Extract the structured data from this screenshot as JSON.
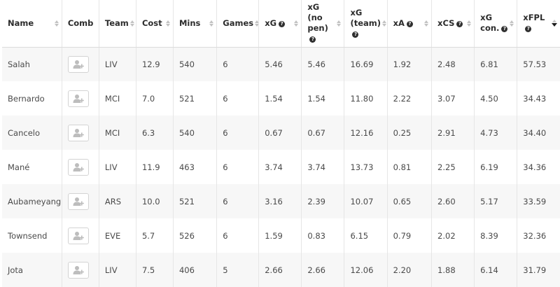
{
  "columns": [
    {
      "label": "Name",
      "help": false,
      "sort": "both"
    },
    {
      "label": "Comb",
      "help": false,
      "sort": "none"
    },
    {
      "label": "Team",
      "help": false,
      "sort": "both"
    },
    {
      "label": "Cost",
      "help": false,
      "sort": "both"
    },
    {
      "label": "Mins",
      "help": false,
      "sort": "both"
    },
    {
      "label": "Games",
      "help": false,
      "sort": "both"
    },
    {
      "label": "xG",
      "help": true,
      "sort": "both"
    },
    {
      "label": "xG (no pen)",
      "help": true,
      "sort": "both"
    },
    {
      "label": "xG (team)",
      "help": true,
      "sort": "both"
    },
    {
      "label": "xA",
      "help": true,
      "sort": "both"
    },
    {
      "label": "xCS",
      "help": true,
      "sort": "both"
    },
    {
      "label": "xG con.",
      "help": true,
      "sort": "both"
    },
    {
      "label": "xFPL",
      "help": true,
      "sort": "desc"
    }
  ],
  "rows": [
    {
      "name": "Salah",
      "team": "LIV",
      "cost": "12.9",
      "mins": "540",
      "games": "6",
      "xg": "5.46",
      "xg_np": "5.46",
      "xg_team": "16.69",
      "xa": "1.92",
      "xcs": "2.48",
      "xg_con": "6.81",
      "xfpl": "57.53"
    },
    {
      "name": "Bernardo",
      "team": "MCI",
      "cost": "7.0",
      "mins": "521",
      "games": "6",
      "xg": "1.54",
      "xg_np": "1.54",
      "xg_team": "11.80",
      "xa": "2.22",
      "xcs": "3.07",
      "xg_con": "4.50",
      "xfpl": "34.43"
    },
    {
      "name": "Cancelo",
      "team": "MCI",
      "cost": "6.3",
      "mins": "540",
      "games": "6",
      "xg": "0.67",
      "xg_np": "0.67",
      "xg_team": "12.16",
      "xa": "0.25",
      "xcs": "2.91",
      "xg_con": "4.73",
      "xfpl": "34.40"
    },
    {
      "name": "Mané",
      "team": "LIV",
      "cost": "11.9",
      "mins": "463",
      "games": "6",
      "xg": "3.74",
      "xg_np": "3.74",
      "xg_team": "13.73",
      "xa": "0.81",
      "xcs": "2.25",
      "xg_con": "6.19",
      "xfpl": "34.36"
    },
    {
      "name": "Aubameyang",
      "team": "ARS",
      "cost": "10.0",
      "mins": "521",
      "games": "6",
      "xg": "3.16",
      "xg_np": "2.39",
      "xg_team": "10.07",
      "xa": "0.65",
      "xcs": "2.60",
      "xg_con": "5.17",
      "xfpl": "33.59"
    },
    {
      "name": "Townsend",
      "team": "EVE",
      "cost": "5.7",
      "mins": "526",
      "games": "6",
      "xg": "1.59",
      "xg_np": "0.83",
      "xg_team": "6.15",
      "xa": "0.79",
      "xcs": "2.02",
      "xg_con": "8.39",
      "xfpl": "32.36"
    },
    {
      "name": "Jota",
      "team": "LIV",
      "cost": "7.5",
      "mins": "406",
      "games": "5",
      "xg": "2.66",
      "xg_np": "2.66",
      "xg_team": "12.06",
      "xa": "2.20",
      "xcs": "1.88",
      "xg_con": "6.14",
      "xfpl": "31.79"
    }
  ],
  "icons": {
    "comb_button": "add-user-icon",
    "help": "question-circle-icon",
    "sort": "sort-arrows-icon"
  },
  "colors": {
    "icon_gray": "#b9b9b9",
    "stripe": "#f7f7f7",
    "border": "#e6e6e6"
  }
}
